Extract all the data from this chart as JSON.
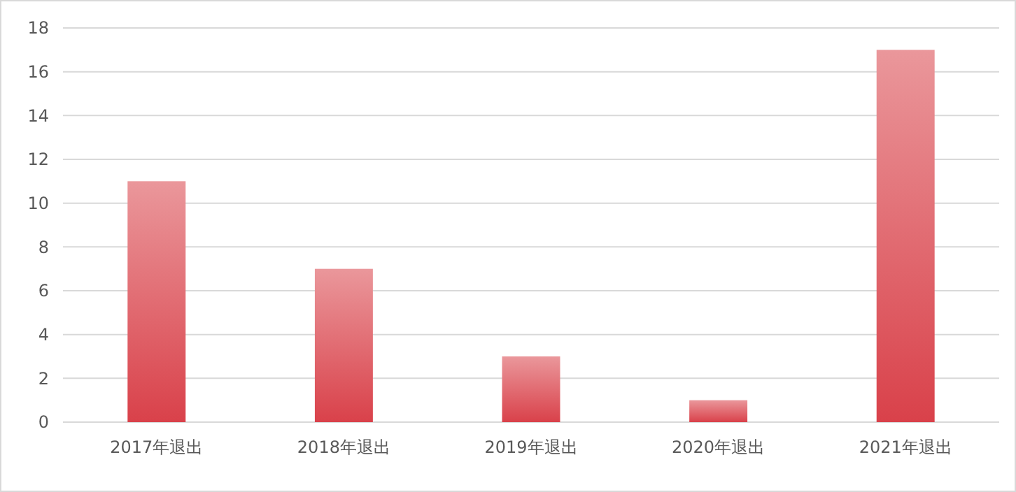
{
  "chart_data": {
    "type": "bar",
    "categories": [
      "2017年退出",
      "2018年退出",
      "2019年退出",
      "2020年退出",
      "2021年退出"
    ],
    "values": [
      11,
      7,
      3,
      1,
      17
    ],
    "color": "#d9414a",
    "ylim": [
      0,
      18
    ],
    "yticks": [
      0,
      2,
      4,
      6,
      8,
      10,
      12,
      14,
      16,
      18
    ],
    "grid": "y"
  }
}
